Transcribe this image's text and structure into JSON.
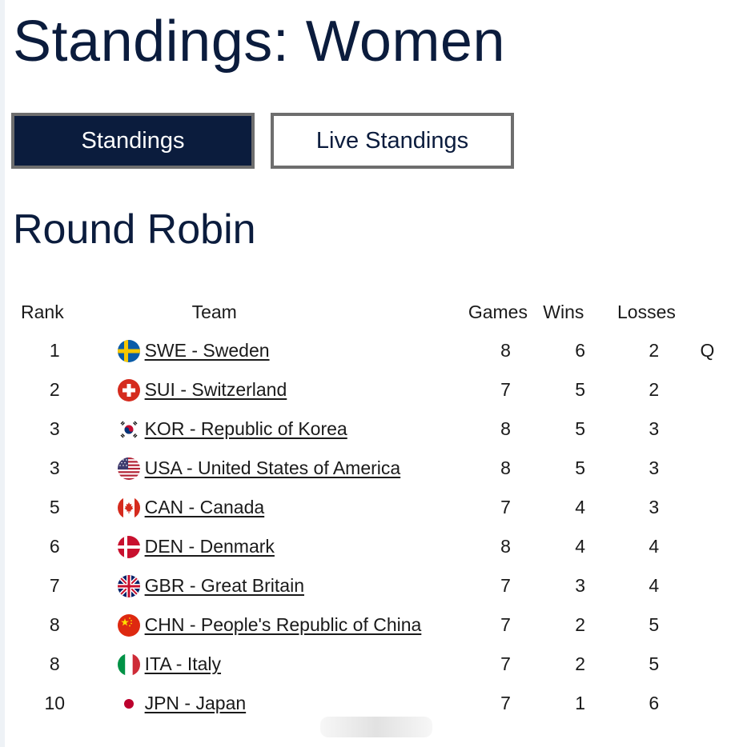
{
  "page": {
    "title": "Standings: Women"
  },
  "tabs": [
    {
      "label": "Standings",
      "active": true
    },
    {
      "label": "Live Standings",
      "active": false
    }
  ],
  "section": {
    "title": "Round Robin"
  },
  "table": {
    "headers": {
      "rank": "Rank",
      "team": "Team",
      "games": "Games",
      "wins": "Wins",
      "losses": "Losses"
    },
    "rows": [
      {
        "rank": "1",
        "team": "SWE - Sweden",
        "flag": "sweden-flag-icon",
        "games": "8",
        "wins": "6",
        "losses": "2",
        "q": "Q"
      },
      {
        "rank": "2",
        "team": "SUI - Switzerland",
        "flag": "switzerland-flag-icon",
        "games": "7",
        "wins": "5",
        "losses": "2",
        "q": ""
      },
      {
        "rank": "3",
        "team": "KOR - Republic of Korea",
        "flag": "korea-flag-icon",
        "games": "8",
        "wins": "5",
        "losses": "3",
        "q": ""
      },
      {
        "rank": "3",
        "team": "USA - United States of America",
        "flag": "usa-flag-icon",
        "games": "8",
        "wins": "5",
        "losses": "3",
        "q": ""
      },
      {
        "rank": "5",
        "team": "CAN - Canada",
        "flag": "canada-flag-icon",
        "games": "7",
        "wins": "4",
        "losses": "3",
        "q": ""
      },
      {
        "rank": "6",
        "team": "DEN - Denmark",
        "flag": "denmark-flag-icon",
        "games": "8",
        "wins": "4",
        "losses": "4",
        "q": ""
      },
      {
        "rank": "7",
        "team": "GBR - Great Britain",
        "flag": "great-britain-flag-icon",
        "games": "7",
        "wins": "3",
        "losses": "4",
        "q": ""
      },
      {
        "rank": "8",
        "team": "CHN - People's Republic of China",
        "flag": "china-flag-icon",
        "games": "7",
        "wins": "2",
        "losses": "5",
        "q": ""
      },
      {
        "rank": "8",
        "team": "ITA - Italy",
        "flag": "italy-flag-icon",
        "games": "7",
        "wins": "2",
        "losses": "5",
        "q": ""
      },
      {
        "rank": "10",
        "team": "JPN - Japan",
        "flag": "japan-flag-icon",
        "games": "7",
        "wins": "1",
        "losses": "6",
        "q": ""
      }
    ]
  },
  "colors": {
    "navy": "#0b1c3d",
    "tab_border": "#6e6e6e",
    "text": "#1a1a1a"
  }
}
